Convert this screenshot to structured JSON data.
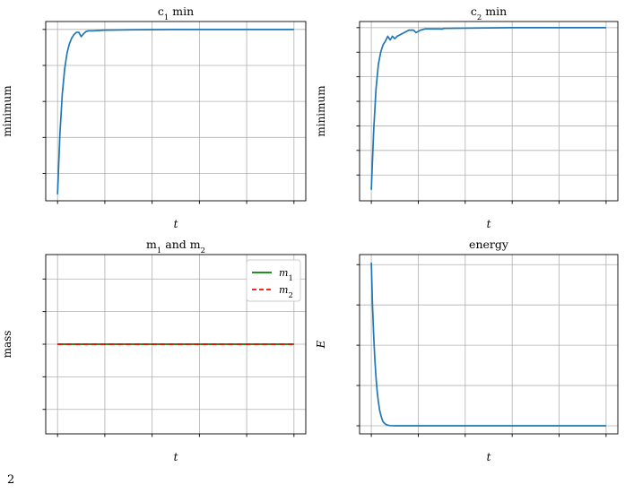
{
  "chart_data": [
    {
      "type": "line",
      "title": "c₁ min",
      "xlabel": "t",
      "ylabel": "minimum",
      "xlim": [
        -0.05,
        1.05
      ],
      "ylim": [
        0.762,
        1.011
      ],
      "x_ticks": [
        "0.0",
        "0.2",
        "0.4",
        "0.6",
        "0.8",
        "1.0"
      ],
      "y_ticks": [
        "0.80",
        "0.85",
        "0.90",
        "0.95",
        "1.00"
      ],
      "grid": true,
      "series": [
        {
          "color": "#1f77b4",
          "x": [
            0.0,
            0.01,
            0.02,
            0.03,
            0.04,
            0.05,
            0.06,
            0.07,
            0.08,
            0.09,
            0.1,
            0.11,
            0.12,
            0.13,
            0.15,
            0.2,
            0.3,
            0.5,
            1.0
          ],
          "y": [
            0.771,
            0.855,
            0.91,
            0.945,
            0.967,
            0.98,
            0.988,
            0.993,
            0.996,
            0.996,
            0.99,
            0.994,
            0.997,
            0.998,
            0.998,
            0.999,
            0.9995,
            1.0,
            1.0
          ]
        }
      ]
    },
    {
      "type": "line",
      "title": "c₂ min",
      "xlabel": "t",
      "ylabel": "minimum",
      "xlim": [
        -0.05,
        1.05
      ],
      "ylim": [
        0.9295,
        1.0025
      ],
      "x_ticks": [
        "0.0",
        "0.2",
        "0.4",
        "0.6",
        "0.8",
        "1.0"
      ],
      "y_ticks": [
        "0.94",
        "0.95",
        "0.96",
        "0.97",
        "0.98",
        "0.99",
        "1.00"
      ],
      "grid": true,
      "series": [
        {
          "color": "#1f77b4",
          "x": [
            0.0,
            0.01,
            0.02,
            0.03,
            0.04,
            0.05,
            0.06,
            0.07,
            0.08,
            0.09,
            0.1,
            0.11,
            0.12,
            0.14,
            0.16,
            0.18,
            0.19,
            0.2,
            0.21,
            0.23,
            0.26,
            0.29,
            0.3,
            0.31,
            0.4,
            0.6,
            1.0
          ],
          "y": [
            0.934,
            0.958,
            0.975,
            0.985,
            0.99,
            0.993,
            0.9945,
            0.9965,
            0.995,
            0.9965,
            0.9955,
            0.9965,
            0.997,
            0.998,
            0.999,
            0.999,
            0.998,
            0.9985,
            0.999,
            0.9995,
            0.9995,
            0.9995,
            0.9994,
            0.9997,
            0.9998,
            1.0,
            1.0
          ]
        }
      ]
    },
    {
      "type": "line",
      "title": "m₁ and m₂",
      "xlabel": "t",
      "ylabel": "mass",
      "xlim": [
        -0.05,
        1.05
      ],
      "ylim": [
        0.945,
        1.055
      ],
      "x_ticks": [
        "0.0",
        "0.2",
        "0.4",
        "0.6",
        "0.8",
        "1.0"
      ],
      "y_ticks": [
        "0.96",
        "0.98",
        "1.00",
        "1.02",
        "1.04"
      ],
      "grid": true,
      "legend": "top-right",
      "series": [
        {
          "name": "m₁",
          "color": "#008000",
          "dash": "solid",
          "x": [
            0.0,
            1.0
          ],
          "y": [
            1.0,
            1.0
          ]
        },
        {
          "name": "m₂",
          "color": "#ff0000",
          "dash": "dashed",
          "x": [
            0.0,
            1.0
          ],
          "y": [
            1.0,
            1.0
          ]
        }
      ]
    },
    {
      "type": "line",
      "title": "energy",
      "xlabel": "t",
      "ylabel": "E",
      "xlim": [
        -0.05,
        1.05
      ],
      "ylim": [
        -0.0004,
        0.0085
      ],
      "x_ticks": [
        "0.0",
        "0.2",
        "0.4",
        "0.6",
        "0.8",
        "1.0"
      ],
      "y_ticks": [
        "0.000",
        "0.002",
        "0.004",
        "0.006",
        "0.008"
      ],
      "grid": true,
      "series": [
        {
          "color": "#1f77b4",
          "x": [
            0.0,
            0.005,
            0.01,
            0.015,
            0.02,
            0.025,
            0.03,
            0.035,
            0.04,
            0.045,
            0.05,
            0.06,
            0.07,
            0.08,
            0.1,
            0.2,
            0.5,
            1.0
          ],
          "y": [
            0.0081,
            0.006,
            0.0045,
            0.0033,
            0.0024,
            0.0017,
            0.0012,
            0.0008,
            0.00055,
            0.00035,
            0.0002,
            8e-05,
            3e-05,
            1e-05,
            0.0,
            0.0,
            0.0,
            0.0
          ]
        }
      ]
    }
  ],
  "footer_text": "2"
}
